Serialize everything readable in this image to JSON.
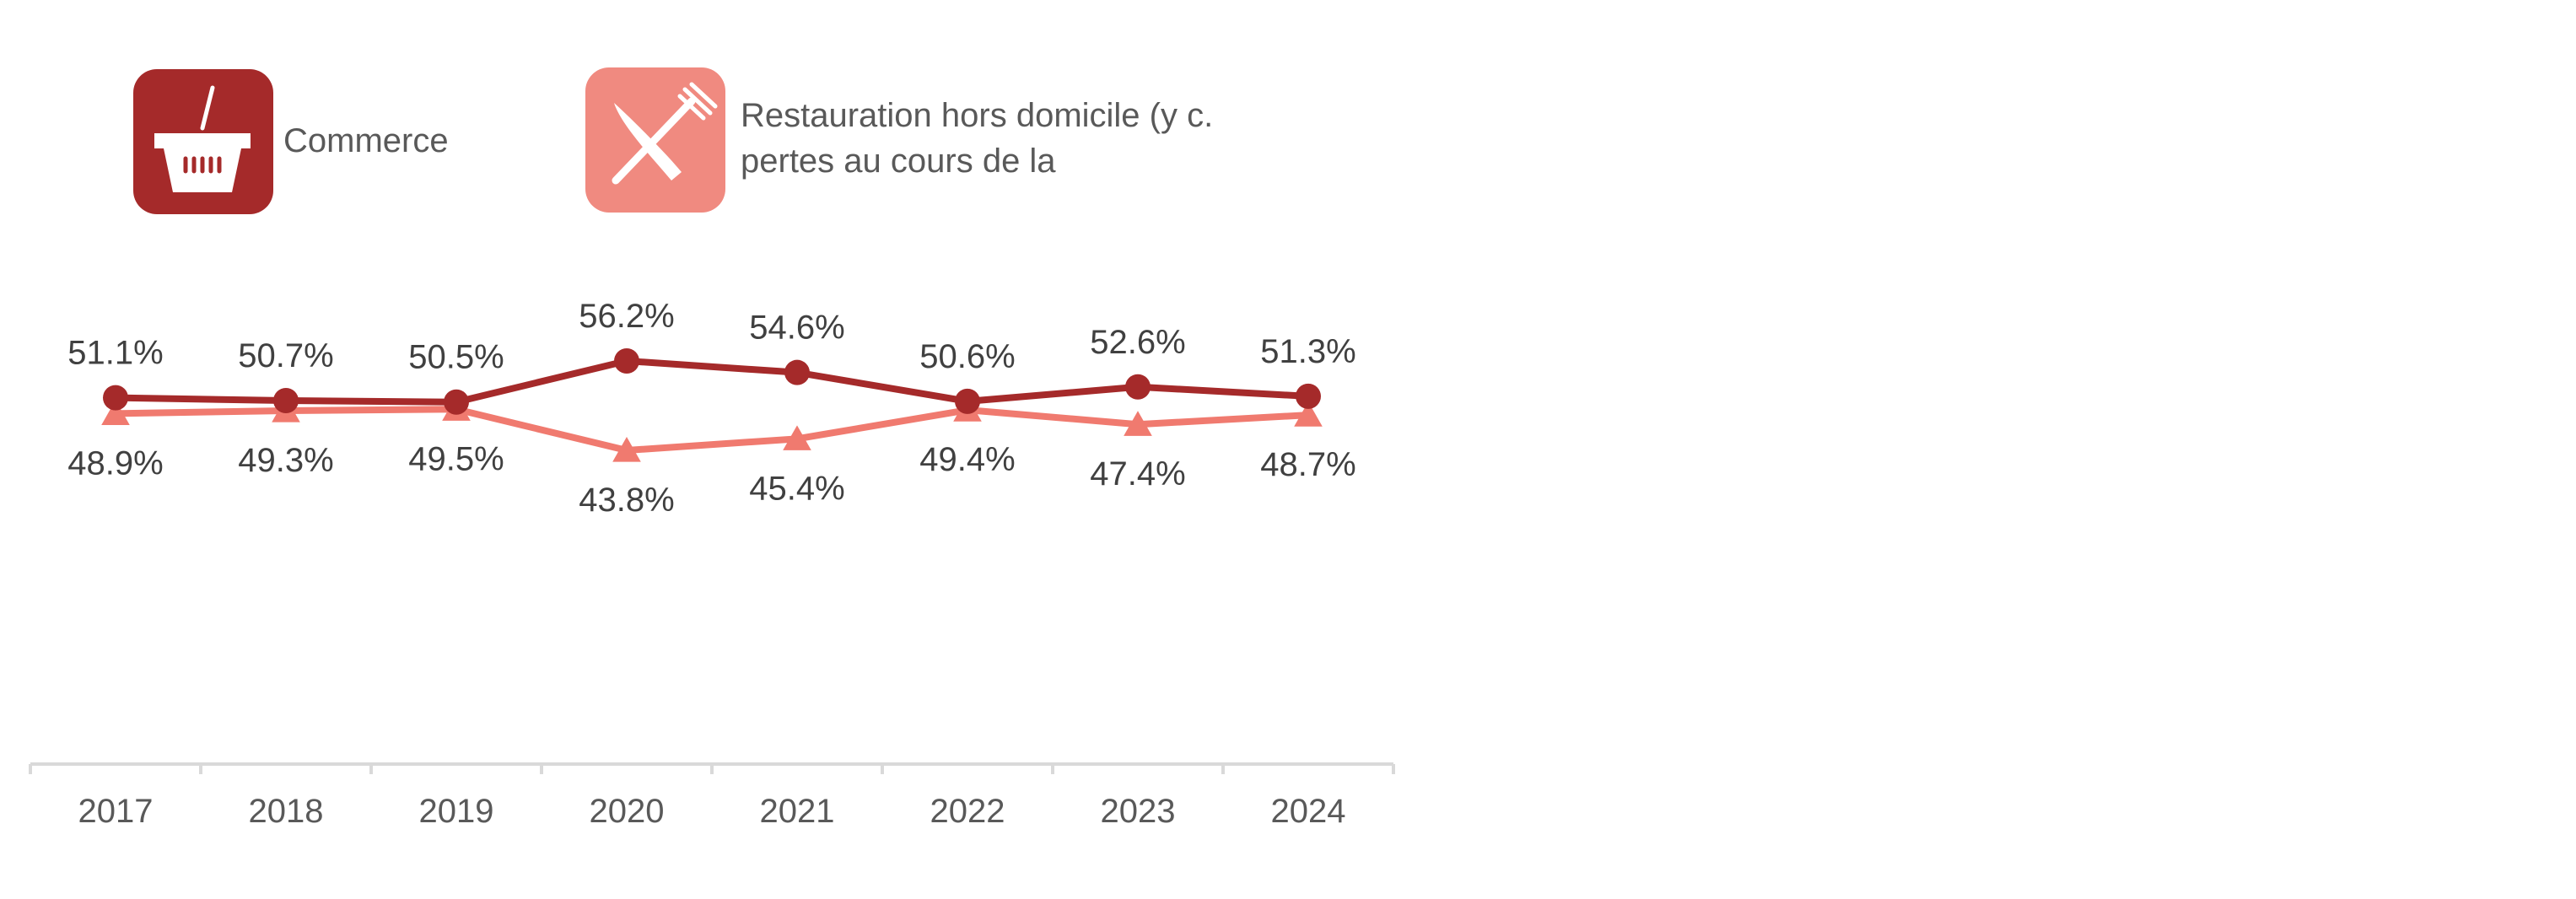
{
  "chart_data": {
    "type": "line",
    "categories": [
      "2017",
      "2018",
      "2019",
      "2020",
      "2021",
      "2022",
      "2023",
      "2024"
    ],
    "series": [
      {
        "name": "Commerce",
        "values": [
          51.1,
          50.7,
          50.5,
          56.2,
          54.6,
          50.6,
          52.6,
          51.3
        ],
        "labels": [
          "51.1%",
          "50.7%",
          "50.5%",
          "56.2%",
          "54.6%",
          "50.6%",
          "52.6%",
          "51.3%"
        ],
        "color": "#a52a2a",
        "marker": "circle",
        "icon": "shopping-basket-icon"
      },
      {
        "name": "Restauration hors domicile (y c. pertes au cours de la",
        "name_lines": [
          "Restauration hors domicile (y c.",
          "pertes au cours de la"
        ],
        "values": [
          48.9,
          49.3,
          49.5,
          43.8,
          45.4,
          49.4,
          47.4,
          48.7
        ],
        "labels": [
          "48.9%",
          "49.3%",
          "49.5%",
          "43.8%",
          "45.4%",
          "49.4%",
          "47.4%",
          "48.7%"
        ],
        "color": "#f07a6f",
        "marker": "triangle",
        "icon": "knife-fork-icon"
      }
    ],
    "ylim": [
      0,
      100
    ],
    "grid": false,
    "legend": "top-left",
    "title": "",
    "xlabel": "",
    "ylabel": ""
  }
}
